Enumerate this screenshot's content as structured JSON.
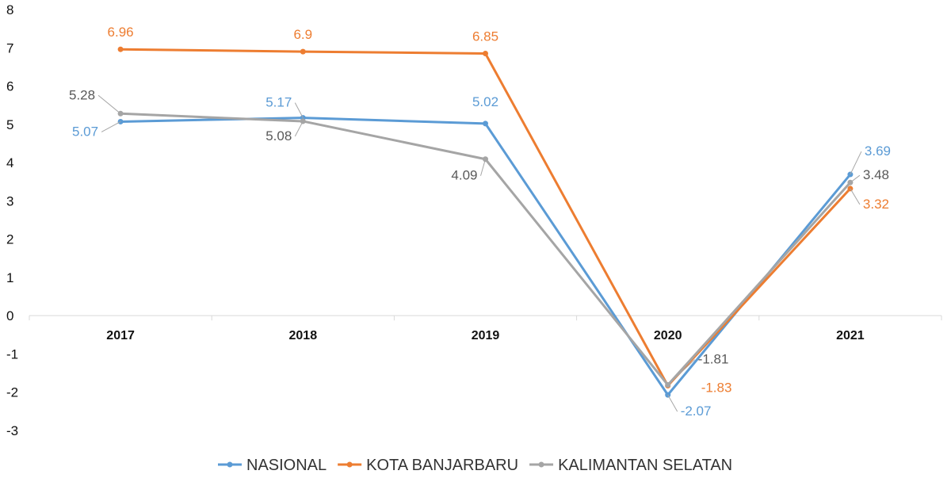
{
  "chart_data": {
    "type": "line",
    "title": "",
    "xlabel": "",
    "ylabel": "",
    "categories": [
      "2017",
      "2018",
      "2019",
      "2020",
      "2021"
    ],
    "ylim": [
      -3,
      8
    ],
    "yticks": [
      "8",
      "7",
      "6",
      "5",
      "4",
      "3",
      "2",
      "1",
      "0",
      "-1",
      "-2",
      "-3"
    ],
    "grid": false,
    "legend_position": "bottom",
    "series": [
      {
        "name": "NASIONAL",
        "color": "#5b9bd5",
        "values": [
          5.07,
          5.17,
          5.02,
          -2.07,
          3.69
        ],
        "labels": [
          "5.07",
          "5.17",
          "5.02",
          "-2.07",
          "3.69"
        ]
      },
      {
        "name": "KOTA BANJARBARU",
        "color": "#ed7d31",
        "values": [
          6.96,
          6.9,
          6.85,
          -1.83,
          3.32
        ],
        "labels": [
          "6.96",
          "6.9",
          "6.85",
          "-1.83",
          "3.32"
        ]
      },
      {
        "name": "KALIMANTAN SELATAN",
        "color": "#a5a5a5",
        "values": [
          5.28,
          5.08,
          4.09,
          -1.81,
          3.48
        ],
        "labels": [
          "5.28",
          "5.08",
          "4.09",
          "-1.81",
          "3.48"
        ],
        "label_color": "#595959"
      }
    ]
  }
}
